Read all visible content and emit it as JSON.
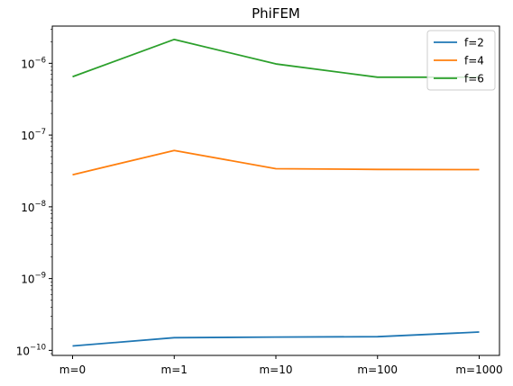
{
  "chart_data": {
    "type": "line",
    "title": "PhiFEM",
    "xlabel": "",
    "ylabel": "",
    "categories": [
      "m=0",
      "m=1",
      "m=10",
      "m=100",
      "m=1000"
    ],
    "yscale": "log",
    "ylim": [
      8.5e-11,
      3.3e-06
    ],
    "ytick_values": [
      1e-10,
      1e-09,
      1e-08,
      1e-07,
      1e-06
    ],
    "ytick_labels": [
      {
        "base": "10",
        "exp": "−10"
      },
      {
        "base": "10",
        "exp": "−9"
      },
      {
        "base": "10",
        "exp": "−8"
      },
      {
        "base": "10",
        "exp": "−7"
      },
      {
        "base": "10",
        "exp": "−6"
      }
    ],
    "grid": false,
    "legend_position": "top-right",
    "series": [
      {
        "name": "f=2",
        "color": "#1f77b4",
        "values": [
          1.15e-10,
          1.5e-10,
          1.53e-10,
          1.55e-10,
          1.8e-10
        ]
      },
      {
        "name": "f=4",
        "color": "#ff7f0e",
        "values": [
          2.8e-08,
          6.1e-08,
          3.4e-08,
          3.32e-08,
          3.3e-08
        ]
      },
      {
        "name": "f=6",
        "color": "#2ca02c",
        "values": [
          6.5e-07,
          2.15e-06,
          9.8e-07,
          6.4e-07,
          6.4e-07
        ]
      }
    ]
  }
}
